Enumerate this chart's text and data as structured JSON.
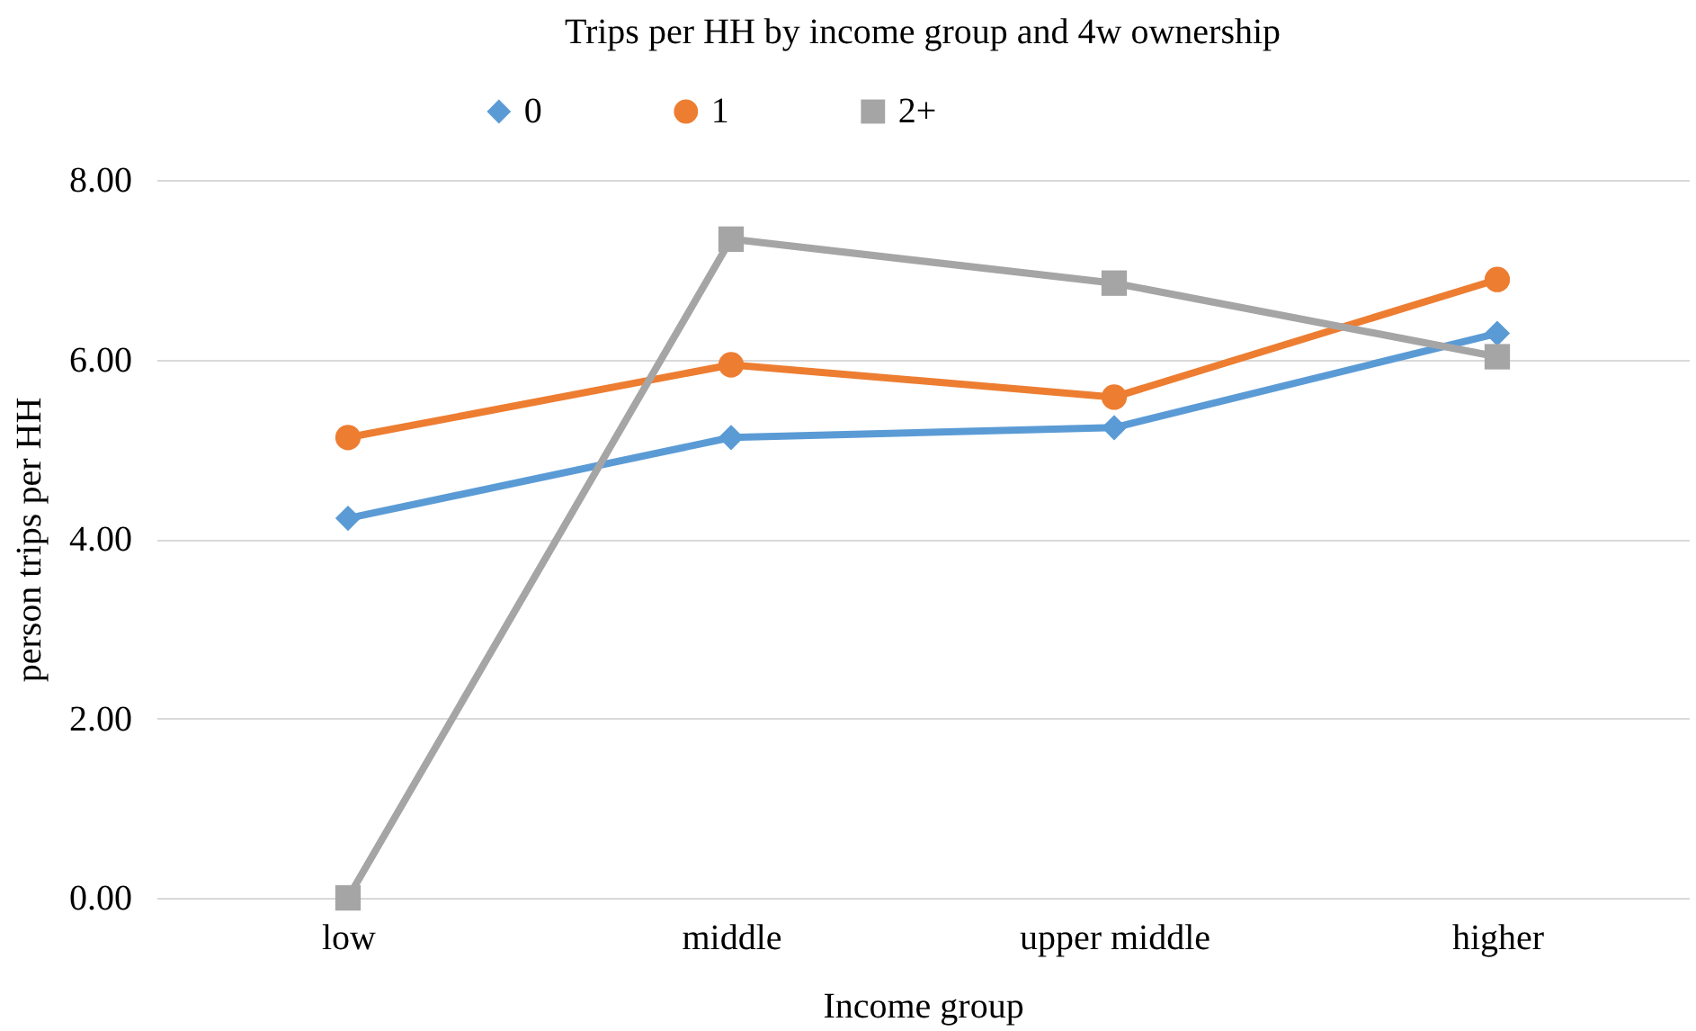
{
  "chart_data": {
    "type": "line",
    "title": "Trips per HH by income group and 4w ownership",
    "xlabel": "Income group",
    "ylabel": "person trips per HH",
    "categories": [
      "low",
      "middle",
      "upper middle",
      "higher"
    ],
    "series": [
      {
        "name": "0",
        "color": "#5b9bd5",
        "marker": "diamond",
        "values": [
          4.23,
          5.13,
          5.24,
          6.29
        ]
      },
      {
        "name": "1",
        "color": "#ed7d31",
        "marker": "circle",
        "values": [
          5.13,
          5.94,
          5.58,
          6.89
        ]
      },
      {
        "name": "2+",
        "color": "#a5a5a5",
        "marker": "square",
        "values": [
          0.0,
          7.34,
          6.85,
          6.03
        ]
      }
    ],
    "ylim": [
      0,
      8
    ],
    "yticks": [
      {
        "value": 0,
        "label": "0.00"
      },
      {
        "value": 2,
        "label": "2.00"
      },
      {
        "value": 4,
        "label": "4.00"
      },
      {
        "value": 6,
        "label": "6.00"
      },
      {
        "value": 8,
        "label": "8.00"
      }
    ],
    "grid": "y",
    "legend": "top",
    "line_style": "solid"
  }
}
